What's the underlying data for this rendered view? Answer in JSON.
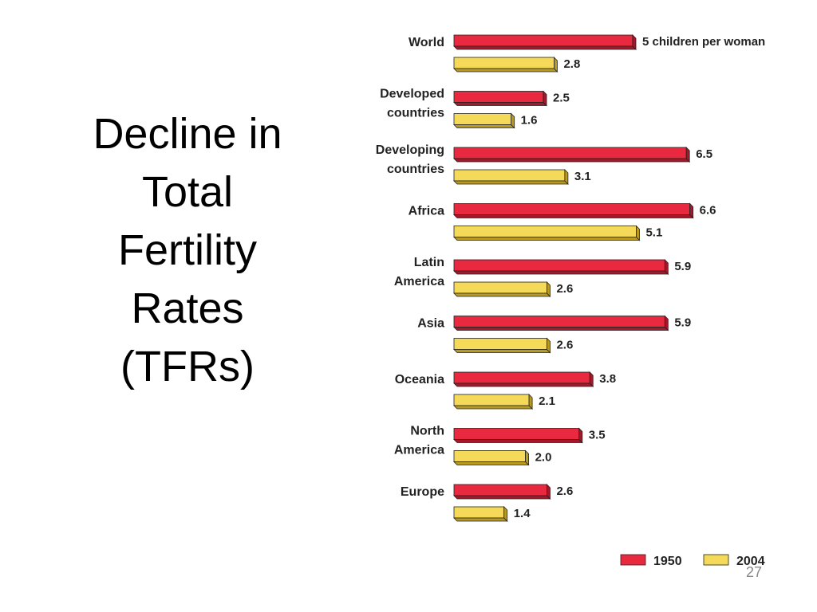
{
  "slide": {
    "title_lines": [
      "Decline in",
      "Total",
      "Fertility",
      "Rates",
      "(TFRs)"
    ],
    "page_number": "27"
  },
  "chart_data": {
    "type": "bar",
    "orientation": "horizontal",
    "categories": [
      [
        "World"
      ],
      [
        "Developed",
        "countries"
      ],
      [
        "Developing",
        "countries"
      ],
      [
        "Africa"
      ],
      [
        "Latin",
        "America"
      ],
      [
        "Asia"
      ],
      [
        "Oceania"
      ],
      [
        "North",
        "America"
      ],
      [
        "Europe"
      ]
    ],
    "series": [
      {
        "name": "1950",
        "color": "#E8293F",
        "values": [
          5.0,
          2.5,
          6.5,
          6.6,
          5.9,
          5.9,
          3.8,
          3.5,
          2.6
        ],
        "value_labels": [
          "5 children per woman",
          "2.5",
          "6.5",
          "6.6",
          "5.9",
          "5.9",
          "3.8",
          "3.5",
          "2.6"
        ]
      },
      {
        "name": "2004",
        "color": "#F5DA5A",
        "values": [
          2.8,
          1.6,
          3.1,
          5.1,
          2.6,
          2.6,
          2.1,
          2.0,
          1.4
        ],
        "value_labels": [
          "2.8",
          "1.6",
          "3.1",
          "5.1",
          "2.6",
          "2.6",
          "2.1",
          "2.0",
          "1.4"
        ]
      }
    ],
    "legend_position": "bottom-right",
    "grid": false
  }
}
